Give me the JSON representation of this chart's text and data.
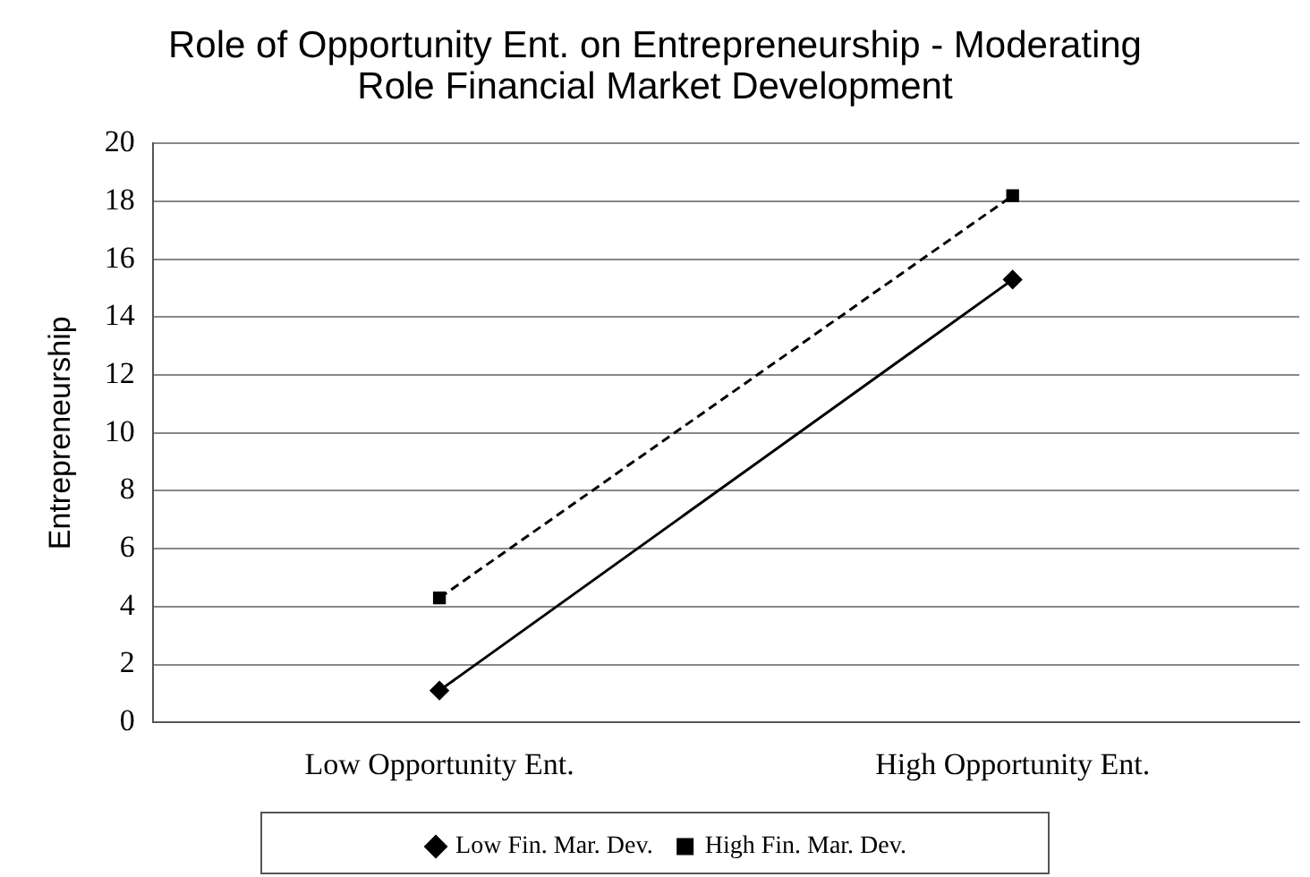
{
  "chart_data": {
    "type": "line",
    "title": "Role of Opportunity Ent. on Entrepreneurship - Moderating Role Financial Market Development",
    "ylabel": "Entrepreneurship",
    "categories": [
      "Low Opportunity Ent.",
      "High Opportunity Ent."
    ],
    "series": [
      {
        "name": "Low Fin. Mar. Dev.",
        "color": "#000000",
        "values": [
          1.1,
          15.3
        ],
        "marker": "diamond",
        "line_style": "solid"
      },
      {
        "name": "High Fin. Mar. Dev.",
        "color": "#000000",
        "values": [
          4.3,
          18.2
        ],
        "marker": "square",
        "line_style": "dashed"
      }
    ],
    "ylim": [
      0,
      20
    ],
    "yticks": [
      0,
      2,
      4,
      6,
      8,
      10,
      12,
      14,
      16,
      18,
      20
    ],
    "grid": "y",
    "legend": "bottom"
  }
}
